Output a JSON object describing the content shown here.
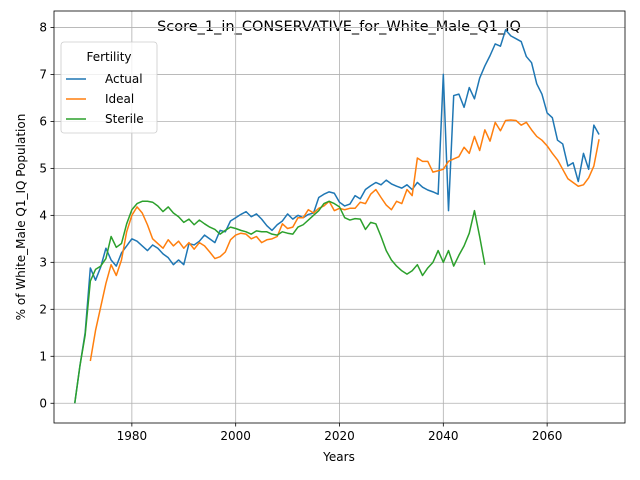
{
  "chart_data": {
    "type": "line",
    "title": "Score_1_in_CONSERVATIVE_for_White_Male_Q1_IQ",
    "xlabel": "Years",
    "ylabel": "% of White_Male Q1_IQ Population",
    "xlim": [
      1965,
      2075
    ],
    "ylim": [
      -0.42,
      8.35
    ],
    "x_ticks": [
      1980,
      2000,
      2020,
      2040,
      2060
    ],
    "y_ticks": [
      0,
      1,
      2,
      3,
      4,
      5,
      6,
      7,
      8
    ],
    "grid": true,
    "legend": {
      "title": "Fertility",
      "position": "upper-left"
    },
    "series": [
      {
        "name": "Actual",
        "color": "#1f77b4",
        "points": [
          [
            1969,
            0
          ],
          [
            1970,
            0.8
          ],
          [
            1971,
            1.5
          ],
          [
            1972,
            2.88
          ],
          [
            1973,
            2.62
          ],
          [
            1974,
            2.9
          ],
          [
            1975,
            3.3
          ],
          [
            1976,
            3.05
          ],
          [
            1977,
            2.92
          ],
          [
            1978,
            3.2
          ],
          [
            1979,
            3.35
          ],
          [
            1980,
            3.5
          ],
          [
            1981,
            3.45
          ],
          [
            1982,
            3.35
          ],
          [
            1983,
            3.25
          ],
          [
            1984,
            3.37
          ],
          [
            1985,
            3.3
          ],
          [
            1986,
            3.18
          ],
          [
            1987,
            3.1
          ],
          [
            1988,
            2.95
          ],
          [
            1989,
            3.05
          ],
          [
            1990,
            2.95
          ],
          [
            1991,
            3.4
          ],
          [
            1992,
            3.37
          ],
          [
            1993,
            3.45
          ],
          [
            1994,
            3.58
          ],
          [
            1995,
            3.5
          ],
          [
            1996,
            3.42
          ],
          [
            1997,
            3.68
          ],
          [
            1998,
            3.65
          ],
          [
            1999,
            3.88
          ],
          [
            2000,
            3.95
          ],
          [
            2001,
            4.02
          ],
          [
            2002,
            4.08
          ],
          [
            2003,
            3.97
          ],
          [
            2004,
            4.03
          ],
          [
            2005,
            3.92
          ],
          [
            2006,
            3.78
          ],
          [
            2007,
            3.68
          ],
          [
            2008,
            3.8
          ],
          [
            2009,
            3.88
          ],
          [
            2010,
            4.03
          ],
          [
            2011,
            3.92
          ],
          [
            2012,
            4.0
          ],
          [
            2013,
            3.95
          ],
          [
            2014,
            4.02
          ],
          [
            2015,
            4.05
          ],
          [
            2016,
            4.38
          ],
          [
            2017,
            4.45
          ],
          [
            2018,
            4.5
          ],
          [
            2019,
            4.47
          ],
          [
            2020,
            4.28
          ],
          [
            2021,
            4.2
          ],
          [
            2022,
            4.24
          ],
          [
            2023,
            4.42
          ],
          [
            2024,
            4.35
          ],
          [
            2025,
            4.55
          ],
          [
            2026,
            4.63
          ],
          [
            2027,
            4.7
          ],
          [
            2028,
            4.65
          ],
          [
            2029,
            4.75
          ],
          [
            2030,
            4.67
          ],
          [
            2031,
            4.62
          ],
          [
            2032,
            4.58
          ],
          [
            2033,
            4.65
          ],
          [
            2034,
            4.55
          ],
          [
            2035,
            4.7
          ],
          [
            2036,
            4.6
          ],
          [
            2037,
            4.54
          ],
          [
            2038,
            4.5
          ],
          [
            2039,
            4.45
          ],
          [
            2040,
            7.0
          ],
          [
            2041,
            4.1
          ],
          [
            2042,
            6.55
          ],
          [
            2043,
            6.58
          ],
          [
            2044,
            6.3
          ],
          [
            2045,
            6.72
          ],
          [
            2046,
            6.48
          ],
          [
            2047,
            6.92
          ],
          [
            2048,
            7.18
          ],
          [
            2049,
            7.4
          ],
          [
            2050,
            7.65
          ],
          [
            2051,
            7.6
          ],
          [
            2052,
            7.95
          ],
          [
            2053,
            7.82
          ],
          [
            2054,
            7.76
          ],
          [
            2055,
            7.7
          ],
          [
            2056,
            7.38
          ],
          [
            2057,
            7.25
          ],
          [
            2058,
            6.8
          ],
          [
            2059,
            6.58
          ],
          [
            2060,
            6.18
          ],
          [
            2061,
            6.08
          ],
          [
            2062,
            5.6
          ],
          [
            2063,
            5.52
          ],
          [
            2064,
            5.05
          ],
          [
            2065,
            5.12
          ],
          [
            2066,
            4.72
          ],
          [
            2067,
            5.32
          ],
          [
            2068,
            4.98
          ],
          [
            2069,
            5.92
          ],
          [
            2070,
            5.72
          ]
        ]
      },
      {
        "name": "Ideal",
        "color": "#ff7f0e",
        "points": [
          [
            1972,
            0.9
          ],
          [
            1973,
            1.55
          ],
          [
            1974,
            2.05
          ],
          [
            1975,
            2.55
          ],
          [
            1976,
            2.95
          ],
          [
            1977,
            2.72
          ],
          [
            1978,
            3.05
          ],
          [
            1979,
            3.65
          ],
          [
            1980,
            4.0
          ],
          [
            1981,
            4.18
          ],
          [
            1982,
            4.05
          ],
          [
            1983,
            3.8
          ],
          [
            1984,
            3.5
          ],
          [
            1985,
            3.4
          ],
          [
            1986,
            3.3
          ],
          [
            1987,
            3.48
          ],
          [
            1988,
            3.35
          ],
          [
            1989,
            3.45
          ],
          [
            1990,
            3.3
          ],
          [
            1991,
            3.42
          ],
          [
            1992,
            3.28
          ],
          [
            1993,
            3.42
          ],
          [
            1994,
            3.35
          ],
          [
            1995,
            3.22
          ],
          [
            1996,
            3.08
          ],
          [
            1997,
            3.12
          ],
          [
            1998,
            3.22
          ],
          [
            1999,
            3.48
          ],
          [
            2000,
            3.58
          ],
          [
            2001,
            3.62
          ],
          [
            2002,
            3.6
          ],
          [
            2003,
            3.5
          ],
          [
            2004,
            3.55
          ],
          [
            2005,
            3.42
          ],
          [
            2006,
            3.48
          ],
          [
            2007,
            3.5
          ],
          [
            2008,
            3.55
          ],
          [
            2009,
            3.82
          ],
          [
            2010,
            3.72
          ],
          [
            2011,
            3.75
          ],
          [
            2012,
            3.95
          ],
          [
            2013,
            3.95
          ],
          [
            2014,
            4.12
          ],
          [
            2015,
            4.05
          ],
          [
            2016,
            4.15
          ],
          [
            2017,
            4.2
          ],
          [
            2018,
            4.3
          ],
          [
            2019,
            4.1
          ],
          [
            2020,
            4.15
          ],
          [
            2021,
            4.12
          ],
          [
            2022,
            4.15
          ],
          [
            2023,
            4.15
          ],
          [
            2024,
            4.28
          ],
          [
            2025,
            4.25
          ],
          [
            2026,
            4.45
          ],
          [
            2027,
            4.55
          ],
          [
            2028,
            4.38
          ],
          [
            2029,
            4.22
          ],
          [
            2030,
            4.12
          ],
          [
            2031,
            4.3
          ],
          [
            2032,
            4.25
          ],
          [
            2033,
            4.55
          ],
          [
            2034,
            4.42
          ],
          [
            2035,
            5.22
          ],
          [
            2036,
            5.15
          ],
          [
            2037,
            5.15
          ],
          [
            2038,
            4.92
          ],
          [
            2039,
            4.95
          ],
          [
            2040,
            4.98
          ],
          [
            2041,
            5.15
          ],
          [
            2042,
            5.2
          ],
          [
            2043,
            5.25
          ],
          [
            2044,
            5.45
          ],
          [
            2045,
            5.32
          ],
          [
            2046,
            5.68
          ],
          [
            2047,
            5.38
          ],
          [
            2048,
            5.82
          ],
          [
            2049,
            5.58
          ],
          [
            2050,
            5.98
          ],
          [
            2051,
            5.8
          ],
          [
            2052,
            6.02
          ],
          [
            2053,
            6.03
          ],
          [
            2054,
            6.02
          ],
          [
            2055,
            5.92
          ],
          [
            2056,
            5.98
          ],
          [
            2057,
            5.82
          ],
          [
            2058,
            5.68
          ],
          [
            2059,
            5.6
          ],
          [
            2060,
            5.48
          ],
          [
            2061,
            5.32
          ],
          [
            2062,
            5.18
          ],
          [
            2063,
            4.98
          ],
          [
            2064,
            4.78
          ],
          [
            2065,
            4.7
          ],
          [
            2066,
            4.62
          ],
          [
            2067,
            4.65
          ],
          [
            2068,
            4.8
          ],
          [
            2069,
            5.05
          ],
          [
            2070,
            5.62
          ]
        ]
      },
      {
        "name": "Sterile",
        "color": "#2ca02c",
        "points": [
          [
            1969,
            0
          ],
          [
            1970,
            0.8
          ],
          [
            1971,
            1.45
          ],
          [
            1972,
            2.6
          ],
          [
            1973,
            2.85
          ],
          [
            1974,
            2.92
          ],
          [
            1975,
            3.08
          ],
          [
            1976,
            3.55
          ],
          [
            1977,
            3.32
          ],
          [
            1978,
            3.4
          ],
          [
            1979,
            3.82
          ],
          [
            1980,
            4.12
          ],
          [
            1981,
            4.25
          ],
          [
            1982,
            4.3
          ],
          [
            1983,
            4.3
          ],
          [
            1984,
            4.28
          ],
          [
            1985,
            4.2
          ],
          [
            1986,
            4.08
          ],
          [
            1987,
            4.18
          ],
          [
            1988,
            4.05
          ],
          [
            1989,
            3.97
          ],
          [
            1990,
            3.85
          ],
          [
            1991,
            3.92
          ],
          [
            1992,
            3.8
          ],
          [
            1993,
            3.9
          ],
          [
            1994,
            3.82
          ],
          [
            1995,
            3.75
          ],
          [
            1996,
            3.7
          ],
          [
            1997,
            3.6
          ],
          [
            1998,
            3.68
          ],
          [
            1999,
            3.75
          ],
          [
            2000,
            3.72
          ],
          [
            2001,
            3.68
          ],
          [
            2002,
            3.65
          ],
          [
            2003,
            3.6
          ],
          [
            2004,
            3.67
          ],
          [
            2005,
            3.65
          ],
          [
            2006,
            3.65
          ],
          [
            2007,
            3.6
          ],
          [
            2008,
            3.58
          ],
          [
            2009,
            3.65
          ],
          [
            2010,
            3.62
          ],
          [
            2011,
            3.6
          ],
          [
            2012,
            3.75
          ],
          [
            2013,
            3.8
          ],
          [
            2014,
            3.9
          ],
          [
            2015,
            4.0
          ],
          [
            2016,
            4.1
          ],
          [
            2017,
            4.25
          ],
          [
            2018,
            4.3
          ],
          [
            2019,
            4.25
          ],
          [
            2020,
            4.18
          ],
          [
            2021,
            3.95
          ],
          [
            2022,
            3.9
          ],
          [
            2023,
            3.93
          ],
          [
            2024,
            3.92
          ],
          [
            2025,
            3.7
          ],
          [
            2026,
            3.85
          ],
          [
            2027,
            3.82
          ],
          [
            2028,
            3.55
          ],
          [
            2029,
            3.25
          ],
          [
            2030,
            3.05
          ],
          [
            2031,
            2.92
          ],
          [
            2032,
            2.82
          ],
          [
            2033,
            2.75
          ],
          [
            2034,
            2.82
          ],
          [
            2035,
            2.95
          ],
          [
            2036,
            2.72
          ],
          [
            2037,
            2.88
          ],
          [
            2038,
            3.0
          ],
          [
            2039,
            3.25
          ],
          [
            2040,
            3.0
          ],
          [
            2041,
            3.25
          ],
          [
            2042,
            2.92
          ],
          [
            2043,
            3.15
          ],
          [
            2044,
            3.35
          ],
          [
            2045,
            3.62
          ],
          [
            2046,
            4.1
          ],
          [
            2047,
            3.55
          ],
          [
            2048,
            2.95
          ]
        ]
      }
    ]
  }
}
